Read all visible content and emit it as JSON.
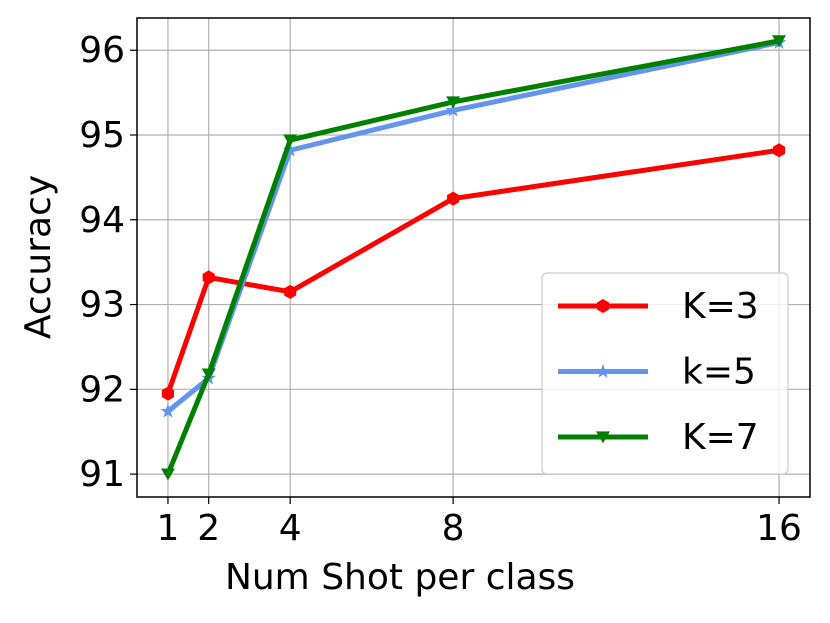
{
  "chart_data": {
    "type": "line",
    "xlabel": "Num Shot per class",
    "ylabel": "Accuracy",
    "x": [
      1,
      2,
      4,
      8,
      16
    ],
    "series": [
      {
        "name": "K=3",
        "color": "#ff0000",
        "marker": "hexagon",
        "values": [
          91.95,
          93.32,
          93.15,
          94.25,
          94.82
        ]
      },
      {
        "name": "k=5",
        "color": "#6495ed",
        "marker": "star",
        "values": [
          91.74,
          92.13,
          94.82,
          95.29,
          96.09
        ]
      },
      {
        "name": "K=7",
        "color": "#008000",
        "marker": "triangle-down",
        "values": [
          91.0,
          92.18,
          94.94,
          95.39,
          96.11
        ]
      }
    ],
    "xlim": [
      0.24,
      16.76
    ],
    "xticks": [
      1,
      2,
      4,
      8,
      16
    ],
    "ylim": [
      90.73,
      96.38
    ],
    "yticks": [
      91,
      92,
      93,
      94,
      95,
      96
    ],
    "grid": true,
    "legend": "lower right"
  }
}
